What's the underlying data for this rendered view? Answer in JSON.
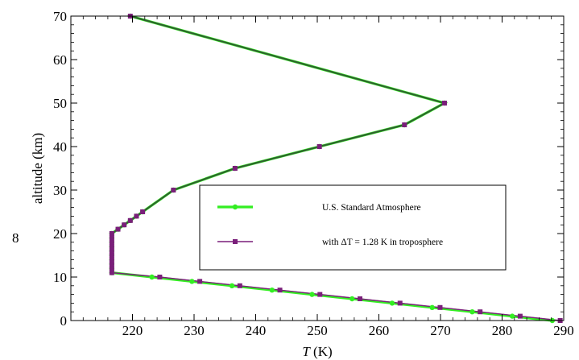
{
  "chart_data": {
    "type": "line",
    "xlabel_var": "T",
    "xlabel_unit": "(K)",
    "ylabel": "altitude (km)",
    "stray_label": "8",
    "xlim": [
      210,
      290
    ],
    "ylim": [
      0,
      70
    ],
    "xticks": [
      220,
      230,
      240,
      250,
      260,
      270,
      280,
      290
    ],
    "yticks": [
      0,
      10,
      20,
      30,
      40,
      50,
      60,
      70
    ],
    "grid": false,
    "legend_position": "center-right",
    "series": [
      {
        "name": "U.S. Standard Atmosphere",
        "color": "#33ee22",
        "marker": "circle",
        "points": [
          [
            288.15,
            0
          ],
          [
            281.65,
            1
          ],
          [
            275.15,
            2
          ],
          [
            268.65,
            3
          ],
          [
            262.15,
            4
          ],
          [
            255.65,
            5
          ],
          [
            249.15,
            6
          ],
          [
            242.65,
            7
          ],
          [
            236.15,
            8
          ],
          [
            229.65,
            9
          ],
          [
            223.15,
            10
          ],
          [
            216.65,
            11
          ],
          [
            216.65,
            12
          ],
          [
            216.65,
            13
          ],
          [
            216.65,
            14
          ],
          [
            216.65,
            15
          ],
          [
            216.65,
            16
          ],
          [
            216.65,
            17
          ],
          [
            216.65,
            18
          ],
          [
            216.65,
            19
          ],
          [
            216.65,
            20
          ],
          [
            217.65,
            21
          ],
          [
            218.65,
            22
          ],
          [
            219.65,
            23
          ],
          [
            220.65,
            24
          ],
          [
            221.65,
            25
          ],
          [
            226.65,
            30
          ],
          [
            236.65,
            35
          ],
          [
            250.35,
            40
          ],
          [
            264.15,
            45
          ],
          [
            270.65,
            50
          ],
          [
            219.65,
            70
          ]
        ]
      },
      {
        "name": "with ΔT = 1.28 K in troposphere",
        "color": "#7a1f7a",
        "marker": "square",
        "points": [
          [
            289.43,
            0
          ],
          [
            282.93,
            1
          ],
          [
            276.43,
            2
          ],
          [
            269.93,
            3
          ],
          [
            263.43,
            4
          ],
          [
            256.93,
            5
          ],
          [
            250.43,
            6
          ],
          [
            243.93,
            7
          ],
          [
            237.43,
            8
          ],
          [
            230.93,
            9
          ],
          [
            224.43,
            10
          ],
          [
            216.65,
            11
          ],
          [
            216.65,
            12
          ],
          [
            216.65,
            13
          ],
          [
            216.65,
            14
          ],
          [
            216.65,
            15
          ],
          [
            216.65,
            16
          ],
          [
            216.65,
            17
          ],
          [
            216.65,
            18
          ],
          [
            216.65,
            19
          ],
          [
            216.65,
            20
          ],
          [
            217.65,
            21
          ],
          [
            218.65,
            22
          ],
          [
            219.65,
            23
          ],
          [
            220.65,
            24
          ],
          [
            221.65,
            25
          ],
          [
            226.65,
            30
          ],
          [
            236.65,
            35
          ],
          [
            250.35,
            40
          ],
          [
            264.15,
            45
          ],
          [
            270.65,
            50
          ],
          [
            219.65,
            70
          ]
        ]
      }
    ],
    "overlap_line_color": "#2f5f2f"
  }
}
